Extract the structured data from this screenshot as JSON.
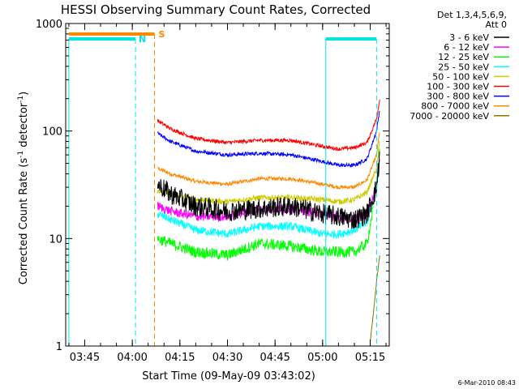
{
  "chart_data": {
    "type": "line",
    "title": "HESSI Observing Summary Count Rates, Corrected",
    "xlabel": "Start Time (09-May-09 03:43:02)",
    "ylabel": "Corrected Count Rate (s⁻¹ detector⁻¹)",
    "ylabel_parts": {
      "main": "Corrected Count Rate (s",
      "exp1": "-1",
      "mid": " detector",
      "exp2": "-1",
      "end": ")"
    },
    "y_scale": "log",
    "ylim": [
      1,
      1000
    ],
    "xlim": [
      "03:39",
      "05:21"
    ],
    "x_ticks": [
      "03:45",
      "04:00",
      "04:15",
      "04:30",
      "04:45",
      "05:00",
      "05:15"
    ],
    "y_ticks": [
      "1",
      "10",
      "100",
      "1000"
    ],
    "legend_header": [
      "Det 1,3,4,5,6,9,",
      "Att 0"
    ],
    "legend_position": "right",
    "data_gap": [
      "03:39",
      "04:08"
    ],
    "series": [
      {
        "name": "3 - 6 keV",
        "color": "#000000",
        "noise": 0.22,
        "x": [
          "04:08",
          "04:12",
          "04:20",
          "04:30",
          "04:40",
          "04:50",
          "05:00",
          "05:05",
          "05:10",
          "05:14",
          "05:17",
          "05:18"
        ],
        "y": [
          32,
          26,
          20,
          18,
          19,
          20,
          17,
          16,
          15,
          17,
          30,
          60
        ]
      },
      {
        "name": "6 - 12 keV",
        "color": "#ff00ff",
        "noise": 0.1,
        "x": [
          "04:08",
          "04:12",
          "04:20",
          "04:30",
          "04:40",
          "04:50",
          "05:00",
          "05:05",
          "05:10",
          "05:14",
          "05:17",
          "05:18"
        ],
        "y": [
          20,
          18,
          16,
          16,
          19,
          19,
          17,
          16,
          15,
          17,
          30,
          60
        ]
      },
      {
        "name": "12 - 25 keV",
        "color": "#00ff00",
        "noise": 0.12,
        "x": [
          "04:08",
          "04:12",
          "04:20",
          "04:30",
          "04:40",
          "04:50",
          "05:00",
          "05:05",
          "05:10",
          "05:14",
          "05:17",
          "05:18"
        ],
        "y": [
          10,
          9,
          7.5,
          7,
          9,
          8.5,
          7.5,
          7.5,
          7.5,
          9,
          30,
          70
        ]
      },
      {
        "name": "25 - 50 keV",
        "color": "#00ffff",
        "noise": 0.09,
        "x": [
          "04:08",
          "04:12",
          "04:20",
          "04:30",
          "04:40",
          "04:50",
          "05:00",
          "05:05",
          "05:10",
          "05:14",
          "05:17",
          "05:18"
        ],
        "y": [
          17,
          15,
          12,
          11,
          13,
          13,
          11,
          11,
          12,
          14,
          30,
          60
        ]
      },
      {
        "name": "50 - 100 keV",
        "color": "#cccc00",
        "noise": 0.06,
        "x": [
          "04:08",
          "04:12",
          "04:20",
          "04:30",
          "04:40",
          "04:50",
          "05:00",
          "05:05",
          "05:10",
          "05:14",
          "05:17",
          "05:18"
        ],
        "y": [
          28,
          26,
          23,
          22,
          24,
          24,
          23,
          22,
          23,
          27,
          45,
          80
        ]
      },
      {
        "name": "100 - 300 keV",
        "color": "#ff0000",
        "noise": 0.04,
        "x": [
          "04:08",
          "04:12",
          "04:20",
          "04:30",
          "04:40",
          "04:50",
          "05:00",
          "05:05",
          "05:10",
          "05:14",
          "05:17",
          "05:18"
        ],
        "y": [
          125,
          105,
          85,
          78,
          82,
          82,
          72,
          68,
          70,
          78,
          130,
          200
        ]
      },
      {
        "name": "300 - 800 keV",
        "color": "#0000ff",
        "noise": 0.04,
        "x": [
          "04:08",
          "04:12",
          "04:20",
          "04:30",
          "04:40",
          "04:50",
          "05:00",
          "05:05",
          "05:10",
          "05:14",
          "05:17",
          "05:18"
        ],
        "y": [
          95,
          80,
          65,
          60,
          62,
          60,
          52,
          48,
          48,
          55,
          100,
          160
        ]
      },
      {
        "name": "800 - 7000 keV",
        "color": "#ff8800",
        "noise": 0.04,
        "x": [
          "04:08",
          "04:12",
          "04:20",
          "04:30",
          "04:40",
          "04:50",
          "05:00",
          "05:05",
          "05:10",
          "05:14",
          "05:17",
          "05:18"
        ],
        "y": [
          45,
          40,
          34,
          32,
          36,
          36,
          32,
          30,
          30,
          35,
          60,
          100
        ]
      },
      {
        "name": "7000 - 20000 keV",
        "color": "#887700",
        "noise": 0.02,
        "x": [
          "05:15",
          "05:16",
          "05:17",
          "05:18"
        ],
        "y": [
          1.1,
          2,
          4,
          7
        ]
      }
    ],
    "attenuator_flags": {
      "label": "S",
      "color": "#ff8800",
      "x": [
        "03:40",
        "04:07"
      ],
      "marker_x": "04:07"
    },
    "night_flags": {
      "label": "N",
      "color": "#00e5e5",
      "intervals": [
        [
          "03:40",
          "04:01"
        ],
        [
          "05:01",
          "05:17"
        ]
      ]
    },
    "footer": "6-Mar-2010 08:43"
  }
}
